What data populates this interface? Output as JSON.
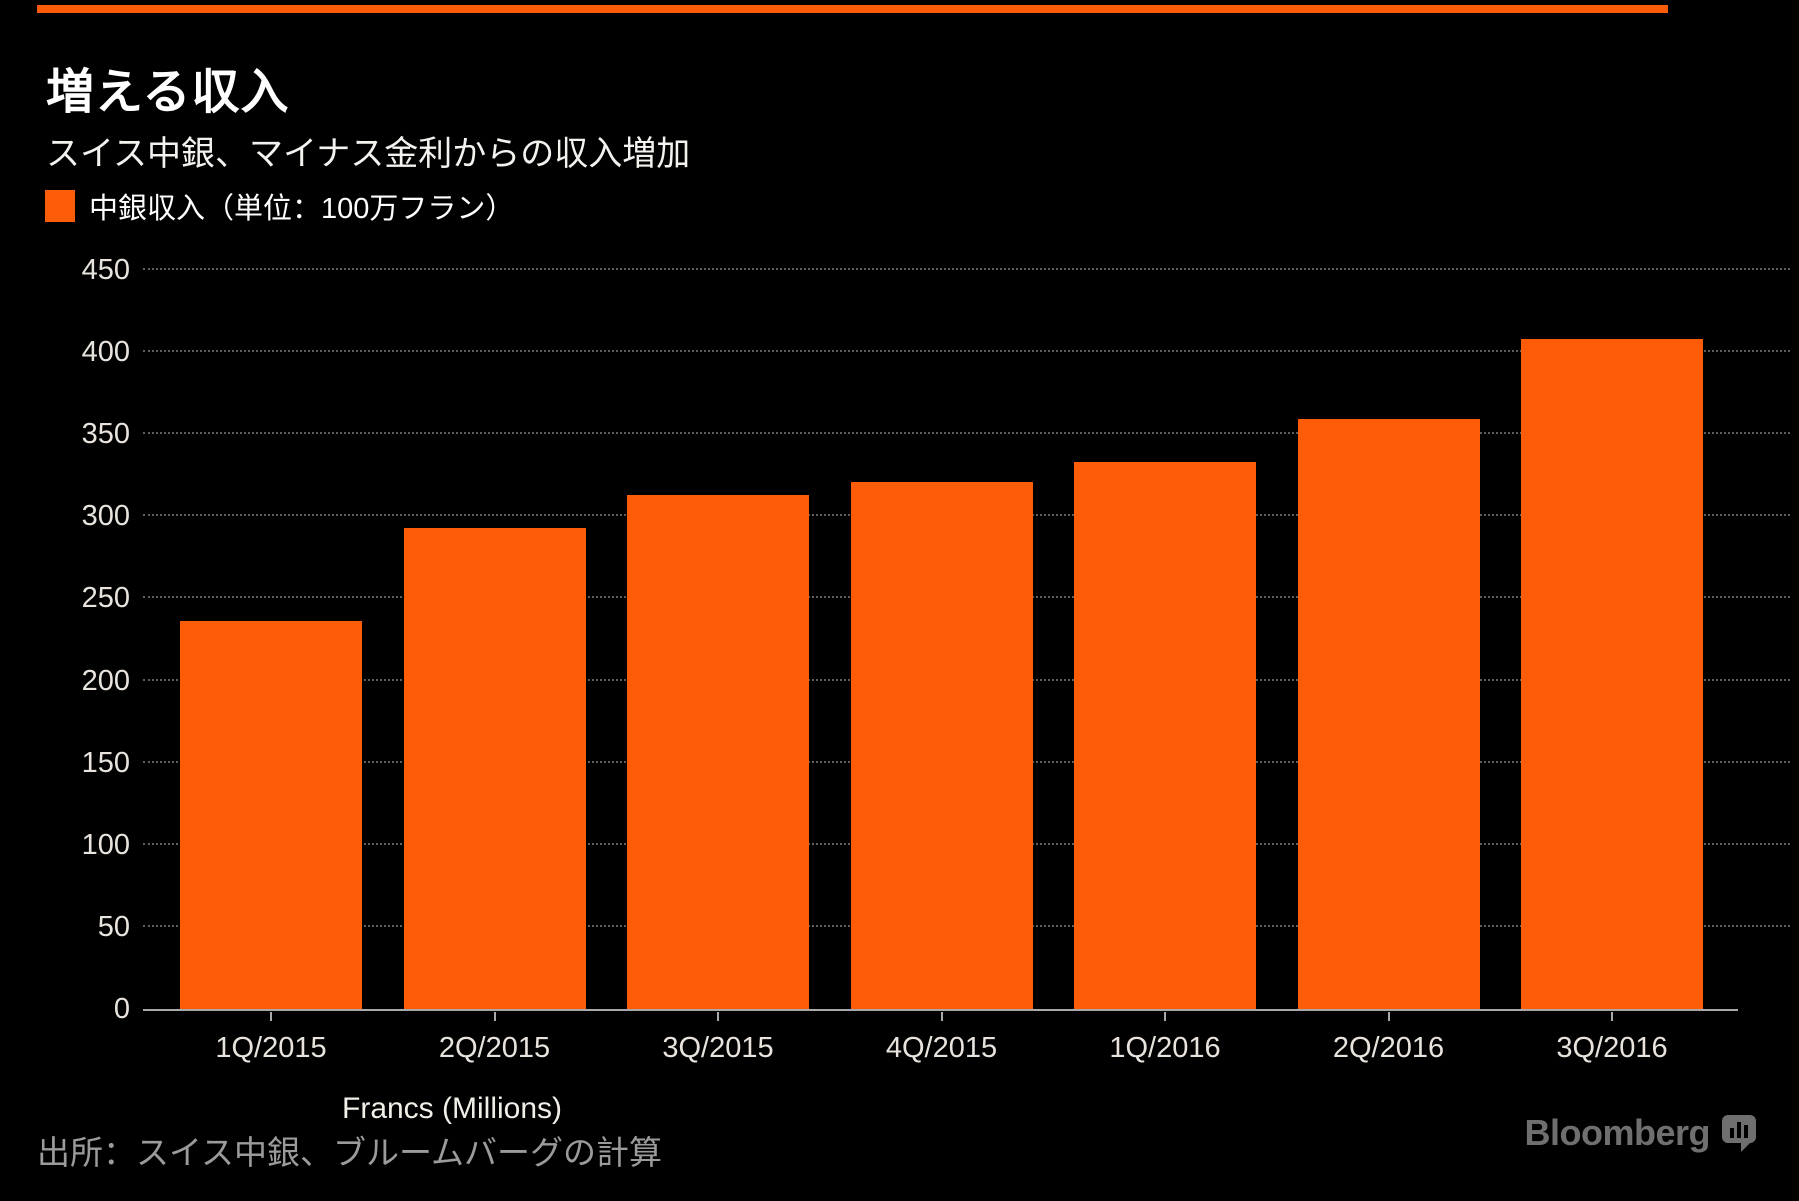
{
  "header": {
    "title": "増える収入",
    "subtitle": "スイス中銀、マイナス金利からの収入増加"
  },
  "legend": {
    "label": "中銀収入（単位：100万フラン）"
  },
  "chart_data": {
    "type": "bar",
    "title": "増える収入",
    "subtitle": "スイス中銀、マイナス金利からの収入増加",
    "series_name": "中銀収入",
    "unit": "100万フラン",
    "categories": [
      "1Q/2015",
      "2Q/2015",
      "3Q/2015",
      "4Q/2015",
      "1Q/2016",
      "2Q/2016",
      "3Q/2016"
    ],
    "values": [
      236,
      293,
      313,
      321,
      333,
      359,
      408
    ],
    "xlabel": "Francs (Millions)",
    "ylabel": "",
    "ylim": [
      0,
      450
    ],
    "yticks": [
      0,
      50,
      100,
      150,
      200,
      250,
      300,
      350,
      400,
      450
    ],
    "grid": "horizontal-dotted",
    "legend_position": "top-left",
    "bar_color": "#fc5c07"
  },
  "footer": {
    "source": "出所：スイス中銀、ブルームバーグの計算",
    "brand": "Bloomberg",
    "brand_icon": "bar-chart-bubble-icon"
  },
  "colors": {
    "background": "#000000",
    "accent": "#fc5c07",
    "axis_text": "#e8e4dd",
    "gridline": "#5e5e5e",
    "baseline": "#a9a9a9",
    "source_text": "#9b9b9b",
    "brand": "#6f6f6f"
  }
}
